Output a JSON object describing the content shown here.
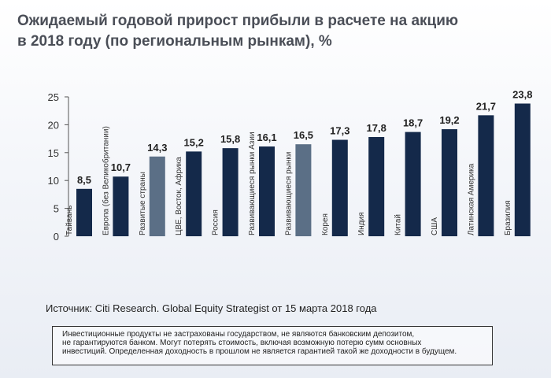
{
  "title_line1": "Ожидаемый годовой прирост прибыли в расчете на акцию",
  "title_line2": "в 2018 году (по региональным рынкам), %",
  "source": "Источник: Citi Research. Global Equity Strategist от 15 марта 2018 года",
  "disclaimer": [
    "Инвестиционные продукты не застрахованы государством, не являются банковским депозитом,",
    "не гарантируются банком. Могут потерять стоимость, включая возможную потерю сумм основных",
    "инвестиций. Определенная доходность в прошлом не является гарантией такой же доходности в будущем."
  ],
  "colors": {
    "bar_primary": "#14294a",
    "bar_highlight": "#5b6f86",
    "title": "#4a4e57"
  },
  "chart_data": {
    "type": "bar",
    "categories": [
      "Тайвань",
      "Европа (без Великобритании)",
      "Развитые страны",
      "ЦВЕ, Восток, Африка",
      "Россия",
      "Развивающиеся рынки Азии",
      "Развивающиеся рынки",
      "Корея",
      "Индия",
      "Китай",
      "США",
      "Латинская Америка",
      "Бразилия"
    ],
    "values": [
      8.5,
      10.7,
      14.3,
      15.2,
      15.8,
      16.1,
      16.5,
      17.3,
      17.8,
      18.7,
      19.2,
      21.7,
      23.8
    ],
    "value_labels": [
      "8,5",
      "10,7",
      "14,3",
      "15,2",
      "15,8",
      "16,1",
      "16,5",
      "17,3",
      "17,8",
      "18,7",
      "19,2",
      "21,7",
      "23,8"
    ],
    "highlight": [
      false,
      false,
      true,
      false,
      false,
      false,
      true,
      false,
      false,
      false,
      false,
      false,
      false
    ],
    "yticks": [
      "0",
      "5",
      "10",
      "15",
      "20",
      "25"
    ],
    "ylim": [
      0,
      25
    ],
    "grid": false,
    "legend": "none"
  }
}
